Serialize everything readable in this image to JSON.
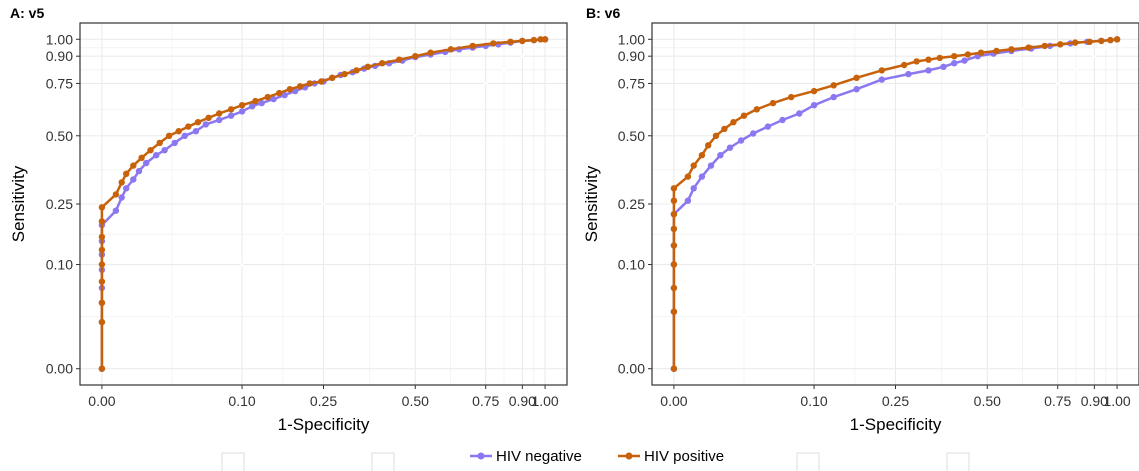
{
  "chart_data": [
    {
      "type": "line",
      "title": "A: v5",
      "xlabel": "1-Specificity",
      "ylabel": "Sensitivity",
      "xlim": [
        0,
        1
      ],
      "ylim": [
        0,
        1
      ],
      "x_ticks": [
        0.0,
        0.1,
        0.25,
        0.5,
        0.75,
        0.9,
        1.0
      ],
      "x_tick_labels": [
        "0.00",
        "0.10",
        "0.25",
        "0.50",
        "0.75",
        "0.90",
        "1.00"
      ],
      "y_ticks": [
        0.0,
        0.1,
        0.25,
        0.5,
        0.75,
        0.9,
        1.0
      ],
      "y_tick_labels": [
        "0.00",
        "0.10",
        "0.25",
        "0.50",
        "0.75",
        "0.90",
        "1.00"
      ],
      "axis_scale": "square-root (sqrt) on both axes",
      "grid": true,
      "reference_line": "diagonal y = x",
      "series": [
        {
          "name": "HIV negative",
          "color": "#8B78F0",
          "x": [
            0,
            0,
            0,
            0,
            0,
            0,
            0,
            0,
            0.001,
            0.002,
            0.003,
            0.005,
            0.007,
            0.01,
            0.015,
            0.02,
            0.027,
            0.035,
            0.045,
            0.055,
            0.07,
            0.085,
            0.1,
            0.115,
            0.13,
            0.15,
            0.17,
            0.19,
            0.21,
            0.23,
            0.25,
            0.27,
            0.29,
            0.32,
            0.35,
            0.38,
            0.42,
            0.46,
            0.5,
            0.55,
            0.6,
            0.65,
            0.7,
            0.75,
            0.8,
            0.85,
            0.9,
            0.95,
            1.0
          ],
          "y": [
            0,
            0.02,
            0.04,
            0.06,
            0.09,
            0.12,
            0.15,
            0.19,
            0.23,
            0.27,
            0.3,
            0.33,
            0.36,
            0.39,
            0.42,
            0.44,
            0.47,
            0.5,
            0.52,
            0.55,
            0.57,
            0.59,
            0.61,
            0.635,
            0.65,
            0.67,
            0.69,
            0.71,
            0.73,
            0.75,
            0.76,
            0.78,
            0.795,
            0.81,
            0.83,
            0.845,
            0.86,
            0.875,
            0.895,
            0.91,
            0.925,
            0.94,
            0.95,
            0.96,
            0.97,
            0.98,
            0.99,
            0.995,
            1.0
          ]
        },
        {
          "name": "HIV positive",
          "color": "#C8620A",
          "x": [
            0,
            0,
            0,
            0,
            0,
            0,
            0,
            0,
            0,
            0.001,
            0.002,
            0.003,
            0.005,
            0.008,
            0.012,
            0.017,
            0.023,
            0.03,
            0.038,
            0.047,
            0.058,
            0.07,
            0.085,
            0.1,
            0.12,
            0.14,
            0.16,
            0.18,
            0.2,
            0.22,
            0.245,
            0.27,
            0.3,
            0.33,
            0.36,
            0.4,
            0.45,
            0.5,
            0.55,
            0.62,
            0.7,
            0.78,
            0.85,
            0.9,
            0.95,
            0.98,
            1.0
          ],
          "y": [
            0,
            0.02,
            0.04,
            0.07,
            0.1,
            0.13,
            0.16,
            0.2,
            0.24,
            0.28,
            0.32,
            0.35,
            0.38,
            0.41,
            0.44,
            0.47,
            0.5,
            0.52,
            0.54,
            0.56,
            0.58,
            0.6,
            0.62,
            0.64,
            0.66,
            0.68,
            0.7,
            0.72,
            0.735,
            0.75,
            0.76,
            0.78,
            0.8,
            0.82,
            0.84,
            0.86,
            0.88,
            0.9,
            0.92,
            0.94,
            0.96,
            0.975,
            0.985,
            0.99,
            0.995,
            1.0,
            1.0
          ]
        }
      ]
    },
    {
      "type": "line",
      "title": "B: v6",
      "xlabel": "1-Specificity",
      "ylabel": "Sensitivity",
      "xlim": [
        0,
        1
      ],
      "ylim": [
        0,
        1
      ],
      "x_ticks": [
        0.0,
        0.1,
        0.25,
        0.5,
        0.75,
        0.9,
        1.0
      ],
      "x_tick_labels": [
        "0.00",
        "0.10",
        "0.25",
        "0.50",
        "0.75",
        "0.90",
        "1.00"
      ],
      "y_ticks": [
        0.0,
        0.1,
        0.25,
        0.5,
        0.75,
        0.9,
        1.0
      ],
      "y_tick_labels": [
        "0.00",
        "0.10",
        "0.25",
        "0.50",
        "0.75",
        "0.90",
        "1.00"
      ],
      "axis_scale": "square-root (sqrt) on both axes",
      "grid": true,
      "reference_line": "diagonal y = x",
      "series": [
        {
          "name": "HIV negative",
          "color": "#8B78F0",
          "x": [
            0,
            0,
            0,
            0,
            0,
            0,
            0,
            0.001,
            0.002,
            0.004,
            0.007,
            0.011,
            0.016,
            0.023,
            0.032,
            0.045,
            0.06,
            0.08,
            0.1,
            0.13,
            0.17,
            0.22,
            0.28,
            0.33,
            0.37,
            0.4,
            0.43,
            0.47,
            0.52,
            0.58,
            0.65,
            0.72,
            0.8,
            0.87,
            0.93,
            0.97,
            1.0
          ],
          "y": [
            0,
            0.03,
            0.06,
            0.1,
            0.14,
            0.18,
            0.22,
            0.26,
            0.3,
            0.34,
            0.38,
            0.42,
            0.45,
            0.48,
            0.51,
            0.54,
            0.57,
            0.6,
            0.64,
            0.68,
            0.72,
            0.77,
            0.8,
            0.82,
            0.84,
            0.86,
            0.875,
            0.9,
            0.915,
            0.93,
            0.945,
            0.96,
            0.975,
            0.985,
            0.99,
            0.995,
            1.0
          ]
        },
        {
          "name": "HIV positive",
          "color": "#C8620A",
          "x": [
            0,
            0,
            0,
            0,
            0,
            0,
            0,
            0,
            0,
            0.001,
            0.002,
            0.004,
            0.006,
            0.009,
            0.013,
            0.018,
            0.025,
            0.035,
            0.05,
            0.07,
            0.1,
            0.13,
            0.17,
            0.22,
            0.27,
            0.3,
            0.33,
            0.36,
            0.4,
            0.44,
            0.48,
            0.53,
            0.58,
            0.64,
            0.7,
            0.76,
            0.82,
            0.88,
            0.93,
            0.97,
            1.0
          ],
          "y": [
            0,
            0.03,
            0.06,
            0.1,
            0.14,
            0.18,
            0.22,
            0.26,
            0.3,
            0.34,
            0.38,
            0.42,
            0.46,
            0.5,
            0.53,
            0.56,
            0.59,
            0.62,
            0.65,
            0.68,
            0.71,
            0.74,
            0.78,
            0.82,
            0.85,
            0.87,
            0.88,
            0.89,
            0.9,
            0.91,
            0.92,
            0.93,
            0.94,
            0.95,
            0.96,
            0.97,
            0.98,
            0.985,
            0.99,
            0.995,
            1.0
          ]
        }
      ]
    }
  ],
  "legend": {
    "items": [
      {
        "label": "HIV negative",
        "color": "#8B78F0"
      },
      {
        "label": "HIV positive",
        "color": "#C8620A"
      }
    ]
  },
  "colors": {
    "panel_border": "#333333",
    "grid_major": "#EBEBEB",
    "grid_minor": "#F4F4F4",
    "reference_line": "#FFFFFF"
  }
}
